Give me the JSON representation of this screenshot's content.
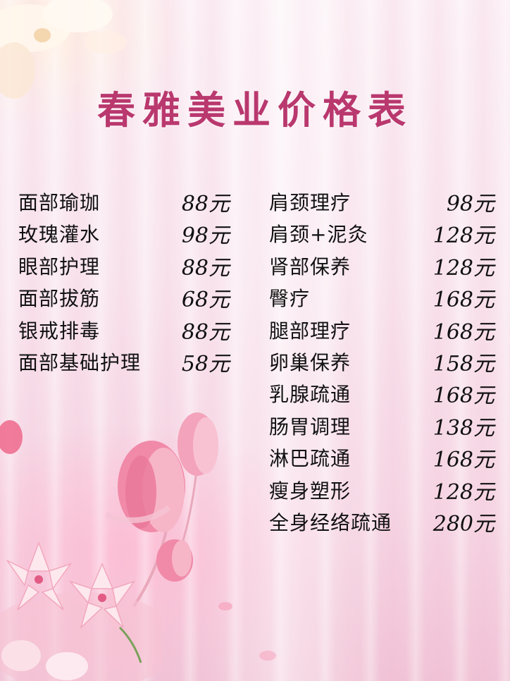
{
  "title": "春雅美业价格表",
  "left_items": [
    {
      "name": "面部瑜珈",
      "price": "88元"
    },
    {
      "name": "玫瑰灌水",
      "price": "98元"
    },
    {
      "name": "眼部护理",
      "price": "88元"
    },
    {
      "name": "面部拔筋",
      "price": "68元"
    },
    {
      "name": "银戒排毒",
      "price": "88元"
    },
    {
      "name": "面部基础护理",
      "price": "58元"
    }
  ],
  "right_items": [
    {
      "name": "肩颈理疗",
      "price": "98元"
    },
    {
      "name": "肩颈+泥灸",
      "price": "128元"
    },
    {
      "name": "肾部保养",
      "price": "128元"
    },
    {
      "name": "臀疗",
      "price": "168元"
    },
    {
      "name": "腿部理疗",
      "price": "168元"
    },
    {
      "name": "卵巢保养",
      "price": "158元"
    },
    {
      "name": "乳腺疏通",
      "price": "168元"
    },
    {
      "name": "肠胃调理",
      "price": "138元"
    },
    {
      "name": "淋巴疏通",
      "price": "168元"
    },
    {
      "name": "瘦身塑形",
      "price": "128元"
    },
    {
      "name": "全身经络疏通",
      "price": "280元"
    }
  ],
  "colors": {
    "title": "#b9386e",
    "text": "#111111",
    "flower": "#f08aa8"
  }
}
